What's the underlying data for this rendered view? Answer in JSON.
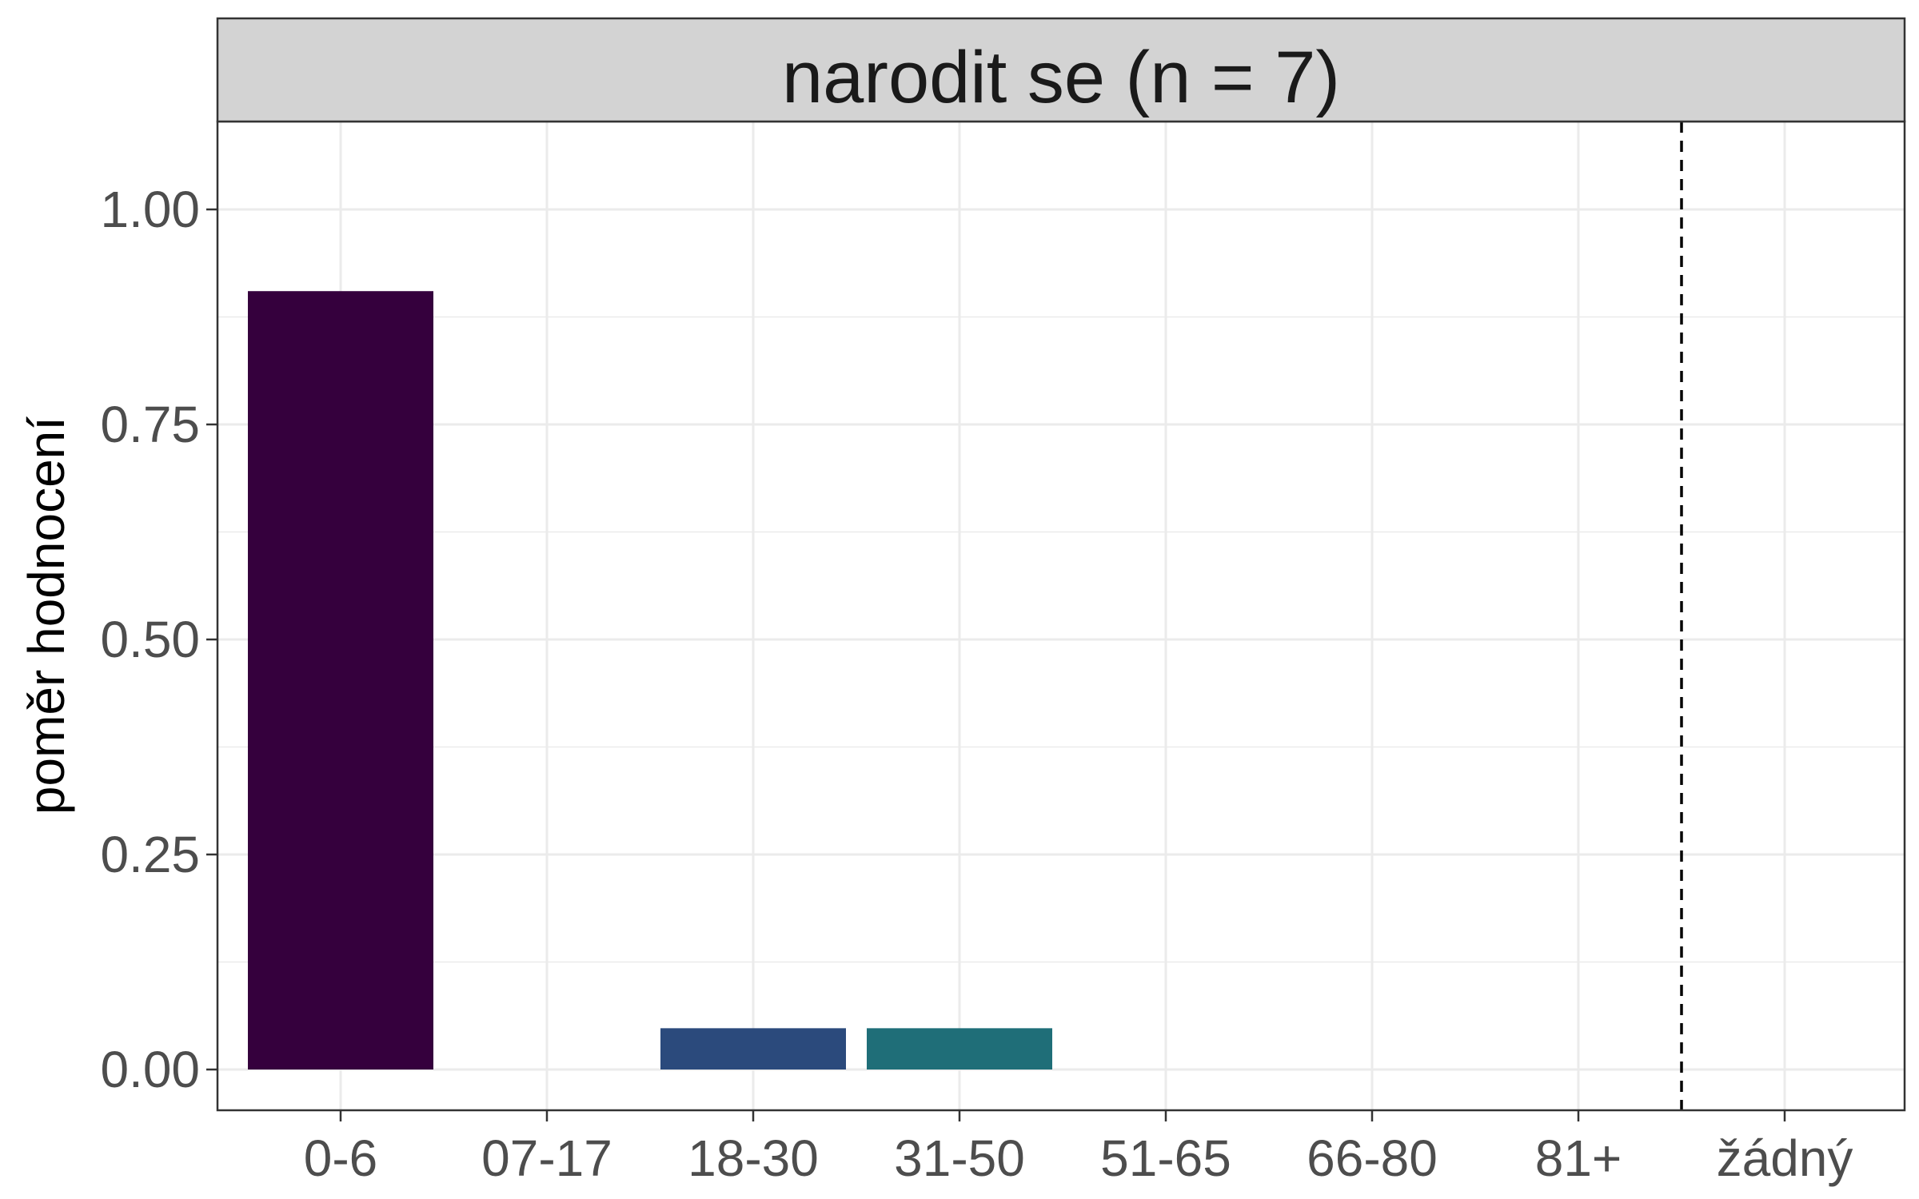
{
  "chart_data": {
    "type": "bar",
    "facet_title": "narodit se (n = 7)",
    "ylabel": "poměr hodnocení",
    "xlabel": "",
    "ylim": [
      0,
      1.1
    ],
    "yticks": [
      {
        "value": 0.0,
        "label": "0.00"
      },
      {
        "value": 0.25,
        "label": "0.25"
      },
      {
        "value": 0.5,
        "label": "0.50"
      },
      {
        "value": 0.75,
        "label": "0.75"
      },
      {
        "value": 1.0,
        "label": "1.00"
      }
    ],
    "categories": [
      "0-6",
      "07-17",
      "18-30",
      "31-50",
      "51-65",
      "66-80",
      "81+",
      "žádný"
    ],
    "values": [
      0.905,
      0,
      0.048,
      0.048,
      0,
      0,
      0,
      0
    ],
    "colors": [
      "#35003d",
      "#35003d",
      "#2b4a7c",
      "#1f6e78",
      "#35003d",
      "#35003d",
      "#35003d",
      "#35003d"
    ],
    "separator_between": [
      "81+",
      "žádný"
    ],
    "grid": true,
    "legend": "none"
  }
}
